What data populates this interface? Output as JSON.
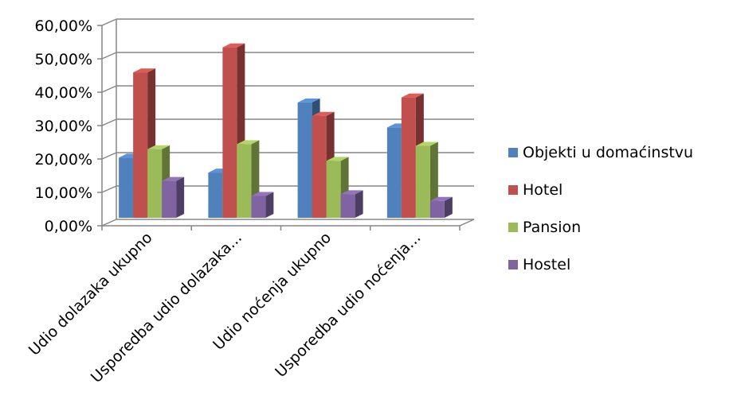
{
  "chart_data": {
    "type": "bar",
    "categories": [
      "Udio dolazaka ukupno",
      "Usporedba udio dolazaka...",
      "Udio noćenja ukupno",
      "Usporedba udio noćenja..."
    ],
    "series": [
      {
        "name": "Objekti u domaćinstvu",
        "color": "#4F81BD",
        "values": [
          19.0,
          14.5,
          35.5,
          28.0
        ]
      },
      {
        "name": "Hotel",
        "color": "#C0504D",
        "values": [
          44.5,
          52.0,
          31.5,
          37.0
        ]
      },
      {
        "name": "Pansion",
        "color": "#9BBB59",
        "values": [
          21.5,
          23.0,
          18.0,
          22.5
        ]
      },
      {
        "name": "Hostel",
        "color": "#8064A2",
        "values": [
          12.0,
          7.5,
          8.0,
          6.0
        ]
      }
    ],
    "y_ticks": [
      "0,00%",
      "10,00%",
      "20,00%",
      "30,00%",
      "40,00%",
      "50,00%",
      "60,00%"
    ],
    "ylim": [
      0,
      60
    ],
    "grid": true,
    "legend": "right",
    "title": "",
    "xlabel": "",
    "ylabel": ""
  }
}
